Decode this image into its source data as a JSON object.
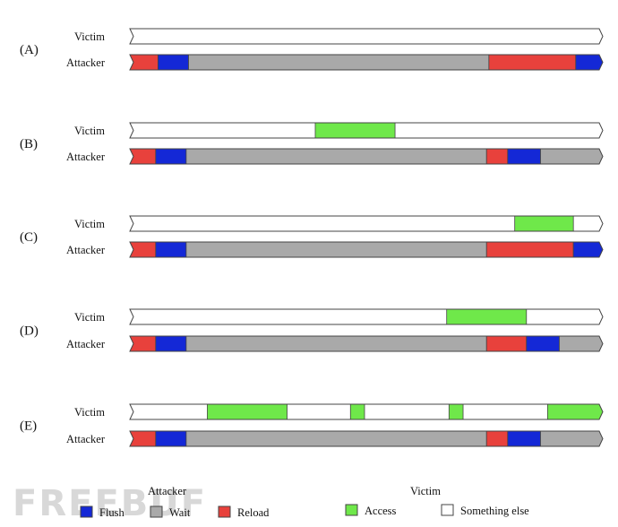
{
  "colors": {
    "flush": "#1428d6",
    "wait": "#a9a9a9",
    "reload": "#e8413c",
    "access": "#6fe84a",
    "other": "#ffffff",
    "stroke": "#444444"
  },
  "rows": {
    "victim": "Victim",
    "attacker": "Attacker"
  },
  "scale": {
    "start": 0,
    "end": 100
  },
  "panels": [
    {
      "label": "(A)",
      "victim": [],
      "attacker": [
        {
          "type": "reload",
          "start": 0,
          "end": 6.0
        },
        {
          "type": "flush",
          "start": 6.0,
          "end": 12.5
        },
        {
          "type": "wait",
          "start": 12.5,
          "end": 76.5
        },
        {
          "type": "reload",
          "start": 76.5,
          "end": 95.0
        },
        {
          "type": "flush",
          "start": 95.0,
          "end": 100
        }
      ]
    },
    {
      "label": "(B)",
      "victim": [
        {
          "type": "access",
          "start": 39.5,
          "end": 56.5
        }
      ],
      "attacker": [
        {
          "type": "reload",
          "start": 0,
          "end": 5.5
        },
        {
          "type": "flush",
          "start": 5.5,
          "end": 12.0
        },
        {
          "type": "wait",
          "start": 12.0,
          "end": 76.0
        },
        {
          "type": "reload",
          "start": 76.0,
          "end": 80.5
        },
        {
          "type": "flush",
          "start": 80.5,
          "end": 87.5
        },
        {
          "type": "wait",
          "start": 87.5,
          "end": 100
        }
      ]
    },
    {
      "label": "(C)",
      "victim": [
        {
          "type": "access",
          "start": 82.0,
          "end": 94.5
        }
      ],
      "attacker": [
        {
          "type": "reload",
          "start": 0,
          "end": 5.5
        },
        {
          "type": "flush",
          "start": 5.5,
          "end": 12.0
        },
        {
          "type": "wait",
          "start": 12.0,
          "end": 76.0
        },
        {
          "type": "reload",
          "start": 76.0,
          "end": 94.5
        },
        {
          "type": "flush",
          "start": 94.5,
          "end": 100
        }
      ]
    },
    {
      "label": "(D)",
      "victim": [
        {
          "type": "access",
          "start": 67.5,
          "end": 84.5
        }
      ],
      "attacker": [
        {
          "type": "reload",
          "start": 0,
          "end": 5.5
        },
        {
          "type": "flush",
          "start": 5.5,
          "end": 12.0
        },
        {
          "type": "wait",
          "start": 12.0,
          "end": 76.0
        },
        {
          "type": "reload",
          "start": 76.0,
          "end": 84.5
        },
        {
          "type": "flush",
          "start": 84.5,
          "end": 91.5
        },
        {
          "type": "wait",
          "start": 91.5,
          "end": 100
        }
      ]
    },
    {
      "label": "(E)",
      "victim": [
        {
          "type": "access",
          "start": 16.5,
          "end": 33.5
        },
        {
          "type": "access",
          "start": 47.0,
          "end": 50.0
        },
        {
          "type": "access",
          "start": 68.0,
          "end": 71.0
        },
        {
          "type": "access",
          "start": 89.0,
          "end": 100
        }
      ],
      "attacker": [
        {
          "type": "reload",
          "start": 0,
          "end": 5.5
        },
        {
          "type": "flush",
          "start": 5.5,
          "end": 12.0
        },
        {
          "type": "wait",
          "start": 12.0,
          "end": 76.0
        },
        {
          "type": "reload",
          "start": 76.0,
          "end": 80.5
        },
        {
          "type": "flush",
          "start": 80.5,
          "end": 87.5
        },
        {
          "type": "wait",
          "start": 87.5,
          "end": 100
        }
      ]
    }
  ],
  "legend": {
    "attacker_title": "Attacker",
    "victim_title": "Victim",
    "items": [
      {
        "type": "flush",
        "label": "Flush"
      },
      {
        "type": "wait",
        "label": "Wait"
      },
      {
        "type": "reload",
        "label": "Reload"
      },
      {
        "type": "access",
        "label": "Access"
      },
      {
        "type": "other",
        "label": "Something else"
      }
    ]
  },
  "watermark": "FREEBUF"
}
